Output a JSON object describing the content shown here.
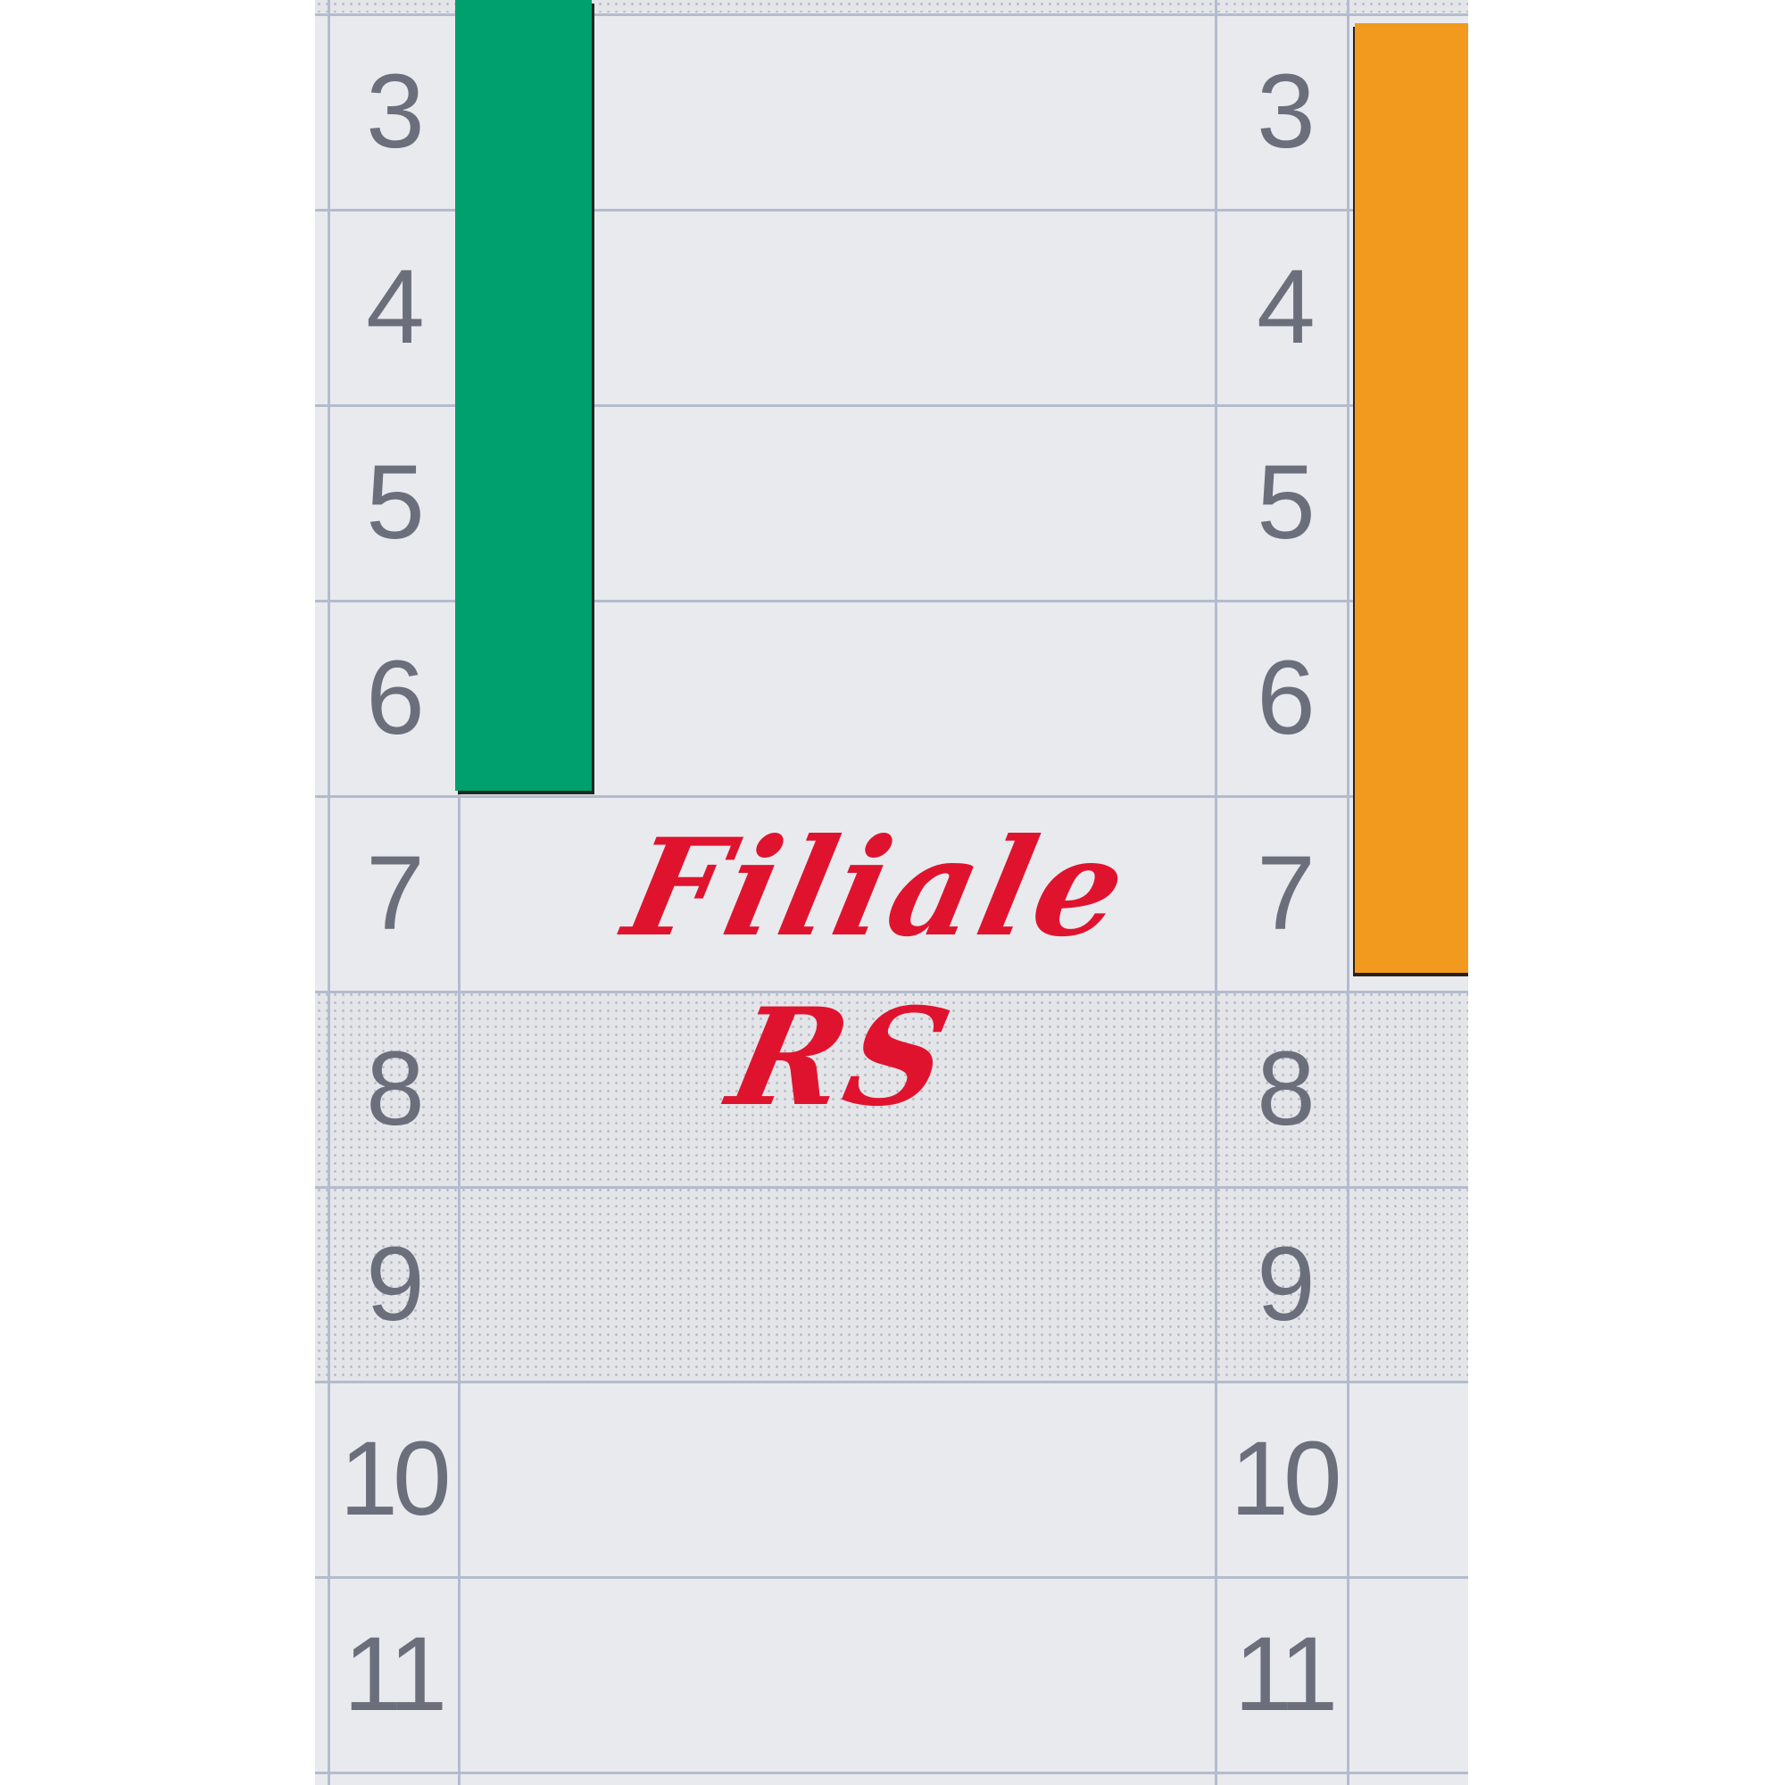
{
  "board": {
    "row_numbers": [
      "3",
      "4",
      "5",
      "6",
      "7",
      "8",
      "9",
      "10",
      "11"
    ],
    "handwritten_label": "Filiale RS",
    "colors": {
      "green_bar": "#00a06e",
      "orange_bar": "#f29a1e",
      "label_ink": "#e0132f",
      "grid": "#b3bccd"
    }
  }
}
